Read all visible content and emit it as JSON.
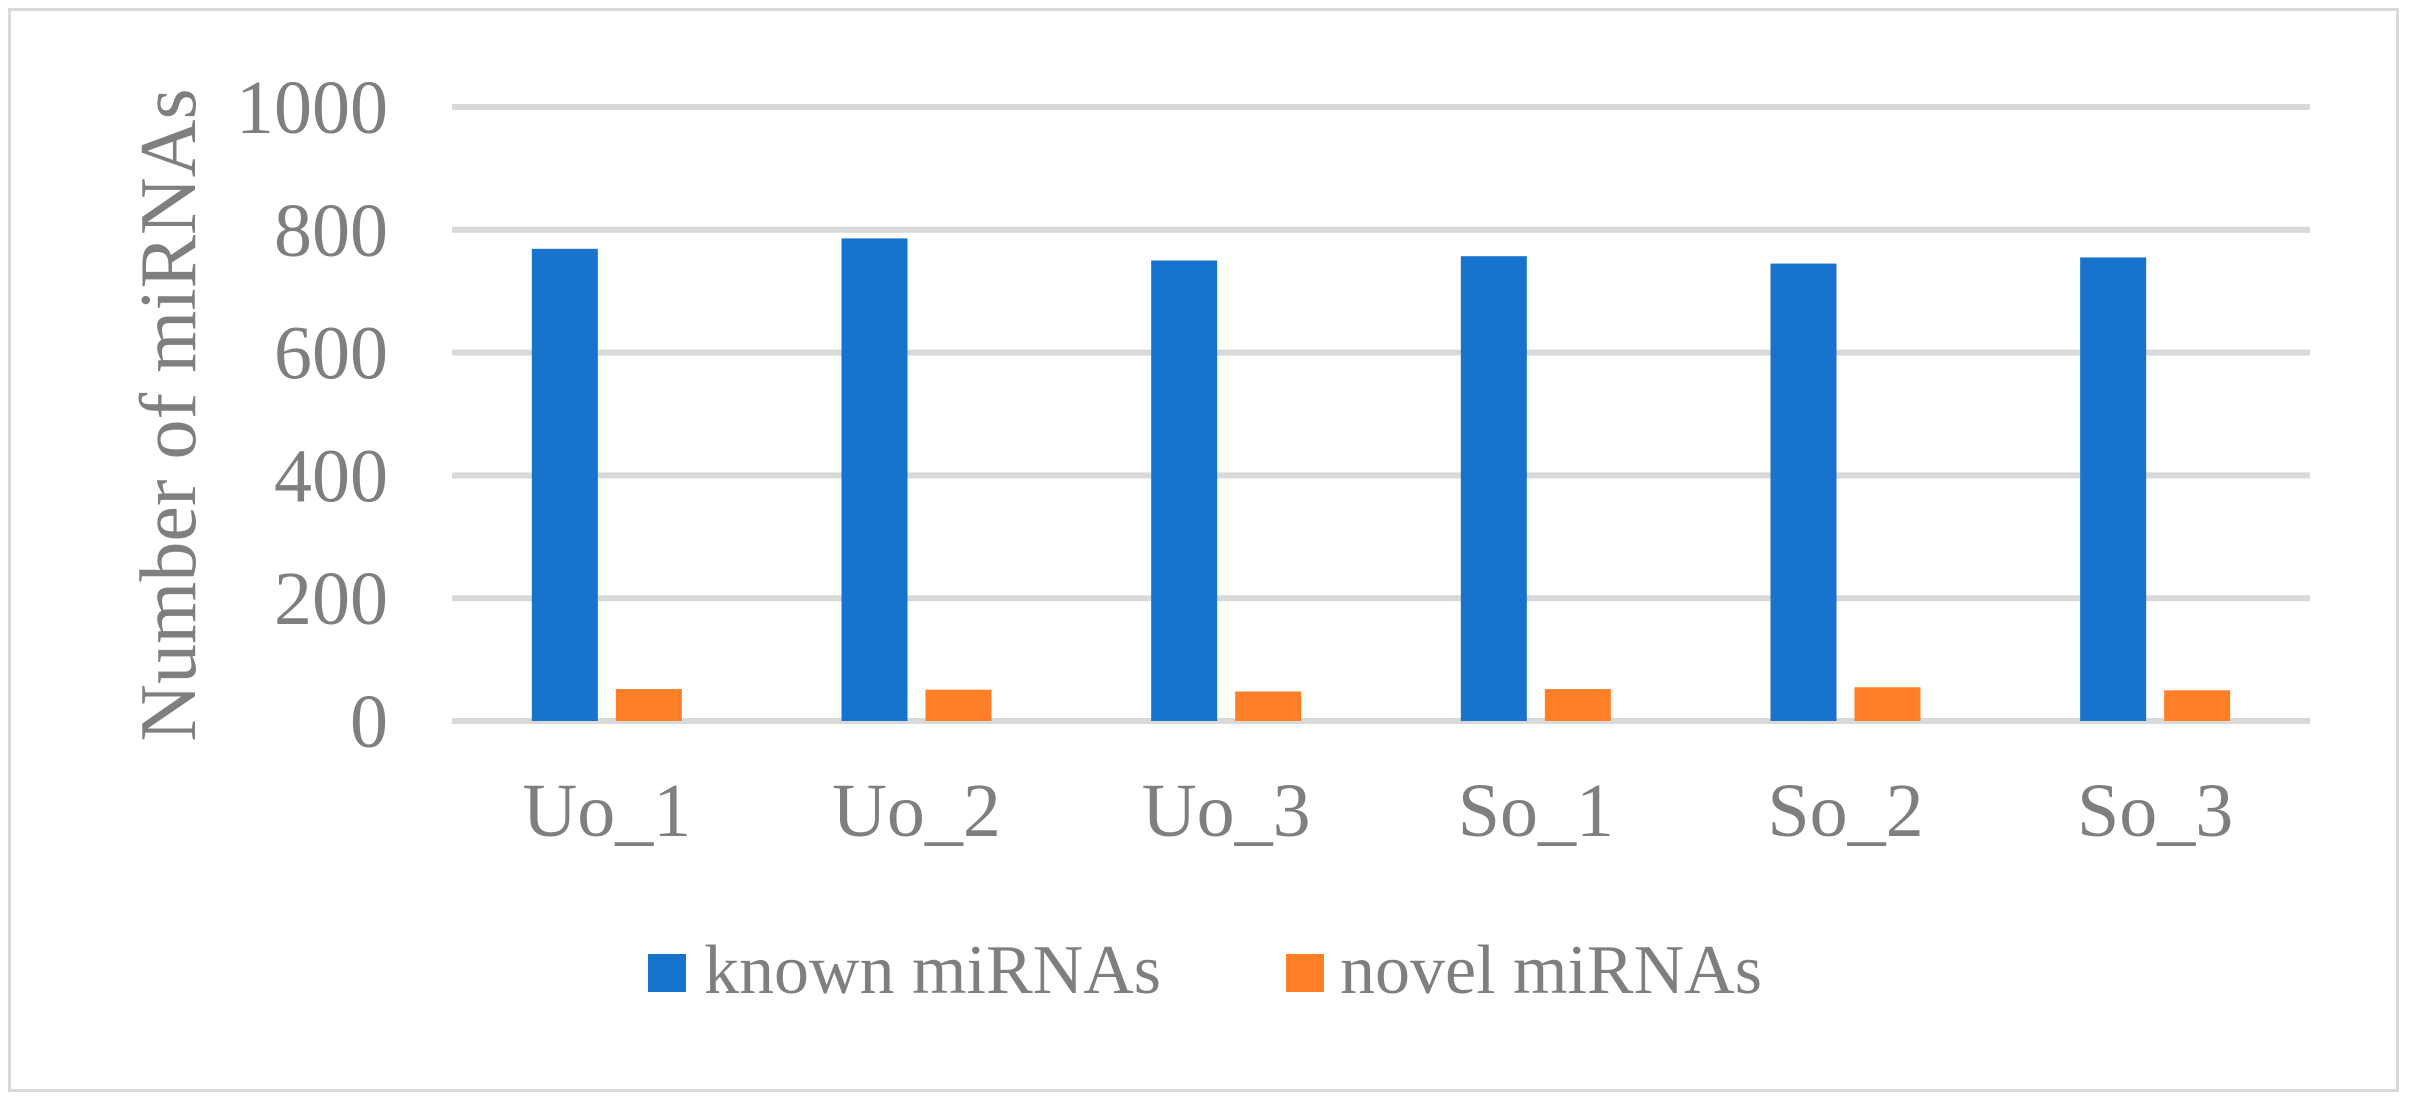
{
  "chart_data": {
    "type": "bar",
    "title": "",
    "xlabel": "",
    "ylabel": "Number of miRNAs",
    "ylim": [
      0,
      1000
    ],
    "yticks": [
      0,
      200,
      400,
      600,
      800,
      1000
    ],
    "grid": true,
    "legend_position": "bottom",
    "categories": [
      "Uo_1",
      "Uo_2",
      "Uo_3",
      "So_1",
      "So_2",
      "So_3"
    ],
    "series": [
      {
        "name": "known miRNAs",
        "color": "#1873CC",
        "values": [
          769,
          786,
          750,
          757,
          745,
          755
        ]
      },
      {
        "name": "novel miRNAs",
        "color": "#FF7F27",
        "values": [
          52,
          51,
          48,
          52,
          55,
          50
        ]
      }
    ]
  }
}
